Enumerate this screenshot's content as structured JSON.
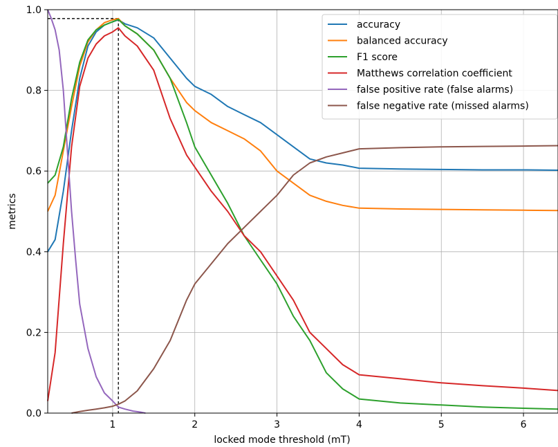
{
  "chart_data": {
    "type": "line",
    "title": "",
    "xlabel": "locked mode threshold (mT)",
    "ylabel": "metrics",
    "xlim": [
      0.21,
      6.42
    ],
    "ylim": [
      0.0,
      1.0
    ],
    "xticks": [
      1,
      2,
      3,
      4,
      5,
      6
    ],
    "yticks": [
      0.0,
      0.2,
      0.4,
      0.6,
      0.8,
      1.0
    ],
    "xtick_labels": [
      "1",
      "2",
      "3",
      "4",
      "5",
      "6"
    ],
    "ytick_labels": [
      "0.0",
      "0.2",
      "0.4",
      "0.6",
      "0.8",
      "1.0"
    ],
    "grid": true,
    "legend_position": "top-right",
    "optimal_marker": {
      "x": 1.07,
      "y": 0.978
    },
    "series": [
      {
        "name": "accuracy",
        "color": "#1f77b4",
        "points": [
          [
            0.21,
            0.4
          ],
          [
            0.3,
            0.43
          ],
          [
            0.4,
            0.55
          ],
          [
            0.5,
            0.7
          ],
          [
            0.6,
            0.83
          ],
          [
            0.7,
            0.91
          ],
          [
            0.8,
            0.945
          ],
          [
            0.9,
            0.962
          ],
          [
            1.0,
            0.97
          ],
          [
            1.07,
            0.975
          ],
          [
            1.15,
            0.965
          ],
          [
            1.3,
            0.955
          ],
          [
            1.5,
            0.93
          ],
          [
            1.7,
            0.88
          ],
          [
            1.9,
            0.83
          ],
          [
            2.0,
            0.81
          ],
          [
            2.2,
            0.79
          ],
          [
            2.4,
            0.76
          ],
          [
            2.6,
            0.74
          ],
          [
            2.8,
            0.72
          ],
          [
            3.0,
            0.69
          ],
          [
            3.2,
            0.66
          ],
          [
            3.4,
            0.63
          ],
          [
            3.6,
            0.62
          ],
          [
            3.8,
            0.615
          ],
          [
            4.0,
            0.607
          ],
          [
            4.5,
            0.605
          ],
          [
            5.0,
            0.604
          ],
          [
            5.5,
            0.603
          ],
          [
            6.0,
            0.603
          ],
          [
            6.42,
            0.602
          ]
        ]
      },
      {
        "name": "balanced accuracy",
        "color": "#ff7f0e",
        "points": [
          [
            0.21,
            0.5
          ],
          [
            0.3,
            0.54
          ],
          [
            0.4,
            0.65
          ],
          [
            0.5,
            0.76
          ],
          [
            0.6,
            0.86
          ],
          [
            0.7,
            0.92
          ],
          [
            0.8,
            0.95
          ],
          [
            0.9,
            0.968
          ],
          [
            1.0,
            0.975
          ],
          [
            1.07,
            0.978
          ],
          [
            1.15,
            0.96
          ],
          [
            1.3,
            0.94
          ],
          [
            1.5,
            0.9
          ],
          [
            1.7,
            0.83
          ],
          [
            1.9,
            0.77
          ],
          [
            2.0,
            0.75
          ],
          [
            2.2,
            0.72
          ],
          [
            2.4,
            0.7
          ],
          [
            2.6,
            0.68
          ],
          [
            2.8,
            0.65
          ],
          [
            3.0,
            0.6
          ],
          [
            3.2,
            0.57
          ],
          [
            3.4,
            0.54
          ],
          [
            3.6,
            0.525
          ],
          [
            3.8,
            0.515
          ],
          [
            4.0,
            0.508
          ],
          [
            4.5,
            0.506
          ],
          [
            5.0,
            0.505
          ],
          [
            5.5,
            0.504
          ],
          [
            6.0,
            0.503
          ],
          [
            6.42,
            0.502
          ]
        ]
      },
      {
        "name": "F1 score",
        "color": "#2ca02c",
        "points": [
          [
            0.21,
            0.57
          ],
          [
            0.3,
            0.59
          ],
          [
            0.4,
            0.66
          ],
          [
            0.5,
            0.78
          ],
          [
            0.6,
            0.87
          ],
          [
            0.7,
            0.925
          ],
          [
            0.8,
            0.95
          ],
          [
            0.9,
            0.962
          ],
          [
            1.0,
            0.97
          ],
          [
            1.07,
            0.976
          ],
          [
            1.15,
            0.96
          ],
          [
            1.3,
            0.94
          ],
          [
            1.5,
            0.9
          ],
          [
            1.7,
            0.83
          ],
          [
            1.9,
            0.72
          ],
          [
            2.0,
            0.66
          ],
          [
            2.2,
            0.59
          ],
          [
            2.4,
            0.52
          ],
          [
            2.6,
            0.44
          ],
          [
            2.8,
            0.38
          ],
          [
            3.0,
            0.32
          ],
          [
            3.2,
            0.24
          ],
          [
            3.4,
            0.18
          ],
          [
            3.6,
            0.1
          ],
          [
            3.8,
            0.06
          ],
          [
            4.0,
            0.035
          ],
          [
            4.5,
            0.025
          ],
          [
            5.0,
            0.02
          ],
          [
            5.5,
            0.015
          ],
          [
            6.0,
            0.012
          ],
          [
            6.42,
            0.01
          ]
        ]
      },
      {
        "name": "Matthews correlation coefficient",
        "color": "#d62728",
        "points": [
          [
            0.21,
            0.03
          ],
          [
            0.3,
            0.15
          ],
          [
            0.4,
            0.42
          ],
          [
            0.5,
            0.66
          ],
          [
            0.6,
            0.81
          ],
          [
            0.7,
            0.88
          ],
          [
            0.8,
            0.915
          ],
          [
            0.9,
            0.935
          ],
          [
            1.0,
            0.945
          ],
          [
            1.07,
            0.955
          ],
          [
            1.15,
            0.935
          ],
          [
            1.3,
            0.91
          ],
          [
            1.5,
            0.85
          ],
          [
            1.7,
            0.73
          ],
          [
            1.9,
            0.64
          ],
          [
            2.0,
            0.61
          ],
          [
            2.2,
            0.55
          ],
          [
            2.4,
            0.5
          ],
          [
            2.6,
            0.44
          ],
          [
            2.8,
            0.4
          ],
          [
            3.0,
            0.34
          ],
          [
            3.2,
            0.28
          ],
          [
            3.4,
            0.2
          ],
          [
            3.6,
            0.16
          ],
          [
            3.8,
            0.12
          ],
          [
            4.0,
            0.095
          ],
          [
            4.5,
            0.085
          ],
          [
            5.0,
            0.075
          ],
          [
            5.5,
            0.068
          ],
          [
            6.0,
            0.062
          ],
          [
            6.42,
            0.056
          ]
        ]
      },
      {
        "name": "false positive rate (false alarms)",
        "color": "#9467bd",
        "points": [
          [
            0.21,
            1.0
          ],
          [
            0.25,
            0.98
          ],
          [
            0.3,
            0.95
          ],
          [
            0.35,
            0.9
          ],
          [
            0.4,
            0.8
          ],
          [
            0.45,
            0.65
          ],
          [
            0.5,
            0.5
          ],
          [
            0.55,
            0.38
          ],
          [
            0.6,
            0.27
          ],
          [
            0.7,
            0.16
          ],
          [
            0.8,
            0.09
          ],
          [
            0.9,
            0.05
          ],
          [
            1.0,
            0.03
          ],
          [
            1.07,
            0.015
          ],
          [
            1.15,
            0.01
          ],
          [
            1.25,
            0.005
          ],
          [
            1.35,
            0.002
          ],
          [
            1.4,
            0.0
          ]
        ]
      },
      {
        "name": "false negative rate (missed alarms)",
        "color": "#8c564b",
        "points": [
          [
            0.5,
            0.0
          ],
          [
            0.6,
            0.004
          ],
          [
            0.7,
            0.007
          ],
          [
            0.8,
            0.01
          ],
          [
            0.9,
            0.013
          ],
          [
            1.0,
            0.017
          ],
          [
            1.07,
            0.022
          ],
          [
            1.15,
            0.03
          ],
          [
            1.3,
            0.055
          ],
          [
            1.5,
            0.11
          ],
          [
            1.7,
            0.18
          ],
          [
            1.9,
            0.28
          ],
          [
            2.0,
            0.32
          ],
          [
            2.2,
            0.37
          ],
          [
            2.4,
            0.42
          ],
          [
            2.6,
            0.46
          ],
          [
            2.8,
            0.5
          ],
          [
            3.0,
            0.54
          ],
          [
            3.2,
            0.59
          ],
          [
            3.4,
            0.62
          ],
          [
            3.6,
            0.635
          ],
          [
            3.8,
            0.645
          ],
          [
            4.0,
            0.655
          ],
          [
            4.5,
            0.658
          ],
          [
            5.0,
            0.66
          ],
          [
            5.5,
            0.661
          ],
          [
            6.0,
            0.662
          ],
          [
            6.42,
            0.663
          ]
        ]
      }
    ]
  }
}
